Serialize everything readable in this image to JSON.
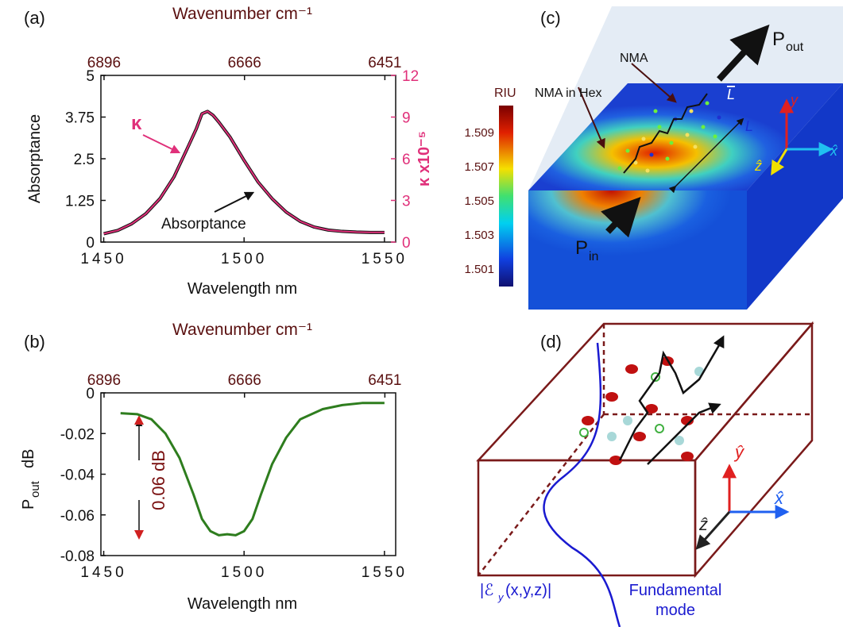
{
  "chart_data": [
    {
      "type": "line",
      "panel": "(a)",
      "x2label": "Wavenumber cm⁻¹",
      "xlabel": "Wavelength nm",
      "ylabel": "Absorptance",
      "y2label": "κ x10⁻⁵",
      "x": [
        1450,
        1455,
        1460,
        1465,
        1470,
        1475,
        1480,
        1483,
        1485,
        1487,
        1489,
        1491,
        1495,
        1500,
        1505,
        1510,
        1515,
        1520,
        1525,
        1530,
        1535,
        1540,
        1545,
        1550
      ],
      "series": [
        {
          "name": "Absorptance",
          "color": "#111111",
          "values": [
            0.25,
            0.35,
            0.55,
            0.85,
            1.3,
            1.95,
            2.85,
            3.4,
            3.85,
            3.92,
            3.8,
            3.6,
            3.15,
            2.45,
            1.8,
            1.3,
            0.9,
            0.62,
            0.45,
            0.36,
            0.32,
            0.3,
            0.29,
            0.29
          ]
        },
        {
          "name": "κ",
          "color": "#e0307a",
          "axis": "y2",
          "values": [
            0.6,
            0.84,
            1.32,
            2.04,
            3.12,
            4.68,
            6.84,
            8.16,
            9.24,
            9.41,
            9.12,
            8.64,
            7.56,
            5.88,
            4.32,
            3.12,
            2.16,
            1.49,
            1.08,
            0.86,
            0.77,
            0.72,
            0.7,
            0.7
          ]
        }
      ],
      "xlim": [
        1449,
        1554
      ],
      "xticks": [
        1450,
        1500,
        1550
      ],
      "x2ticks": [
        6896,
        6666,
        6451
      ],
      "ylim": [
        0,
        5
      ],
      "yticks": [
        0,
        1.25,
        2.5,
        3.75,
        5
      ],
      "y2lim": [
        0,
        12
      ],
      "y2ticks": [
        0,
        3,
        6,
        9,
        12
      ]
    },
    {
      "type": "line",
      "panel": "(b)",
      "x2label": "Wavenumber cm⁻¹",
      "xlabel": "Wavelength nm",
      "ylabel": {
        "base": "P",
        "sub": "out",
        "unit": "dB"
      },
      "annotation": "0.06 dB",
      "x": [
        1456,
        1462,
        1467,
        1472,
        1477,
        1482,
        1485,
        1488,
        1491,
        1494,
        1497,
        1500,
        1503,
        1506,
        1510,
        1515,
        1520,
        1528,
        1535,
        1542,
        1550
      ],
      "series": [
        {
          "color": "#2e7d1e",
          "values": [
            -0.01,
            -0.0105,
            -0.013,
            -0.02,
            -0.032,
            -0.05,
            -0.062,
            -0.068,
            -0.07,
            -0.0695,
            -0.07,
            -0.068,
            -0.062,
            -0.05,
            -0.035,
            -0.022,
            -0.013,
            -0.008,
            -0.006,
            -0.005,
            -0.005
          ]
        }
      ],
      "xlim": [
        1449,
        1554
      ],
      "xticks": [
        1450,
        1500,
        1550
      ],
      "x2ticks": [
        6896,
        6666,
        6451
      ],
      "ylim": [
        -0.08,
        0
      ],
      "yticks": [
        -0.08,
        -0.06,
        -0.04,
        -0.02,
        0
      ]
    }
  ],
  "panel_c": {
    "label": "(c)",
    "p_out": {
      "base": "P",
      "sub": "out"
    },
    "nma": "NMA",
    "nma_hex": "NMA in Hex",
    "colorbar": {
      "title": "RIU",
      "ticks": [
        "1.509",
        "1.507",
        "1.505",
        "1.503",
        "1.501"
      ]
    },
    "p_in": {
      "base": "P",
      "sub": "in"
    },
    "length": "L",
    "length_bar": "L",
    "axes": [
      "y",
      "x̂",
      "ẑ"
    ]
  },
  "panel_d": {
    "label": "(d)",
    "axes": [
      "ŷ",
      "x̂",
      "ẑ"
    ],
    "field": {
      "base": "|ℰ",
      "sub": "y",
      "rest": "(x,y,z)|"
    },
    "mode": [
      "Fundamental",
      "mode"
    ]
  }
}
